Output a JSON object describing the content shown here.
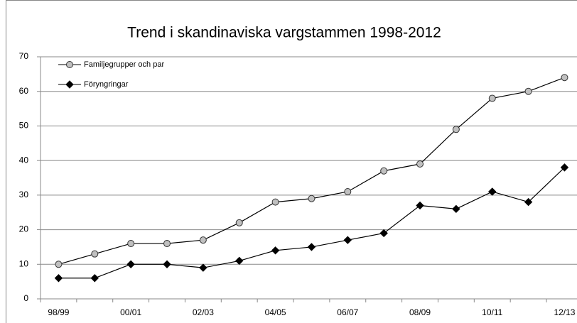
{
  "chart_data": {
    "type": "line",
    "title": "Trend i skandinaviska vargstammen 1998-2012",
    "categories": [
      "98/99",
      null,
      "00/01",
      null,
      "02/03",
      null,
      "04/05",
      null,
      "06/07",
      null,
      "08/09",
      null,
      "10/11",
      null,
      "12/13"
    ],
    "series": [
      {
        "name": "Familjegrupper och par",
        "color": "#000000",
        "marker": "circle",
        "marker_color": "#c0c0c0",
        "values": [
          10,
          13,
          16,
          16,
          17,
          22,
          28,
          29,
          31,
          37,
          39,
          49,
          58,
          60,
          64
        ]
      },
      {
        "name": "Föryngringar",
        "color": "#000000",
        "marker": "diamond",
        "marker_color": "#000000",
        "values": [
          6,
          6,
          10,
          10,
          9,
          11,
          14,
          15,
          17,
          19,
          27,
          26,
          31,
          28,
          38
        ]
      }
    ],
    "ylim": [
      0,
      70
    ],
    "yticks": [
      0,
      10,
      20,
      30,
      40,
      50,
      60,
      70
    ],
    "grid": true,
    "legend": "top-left"
  }
}
